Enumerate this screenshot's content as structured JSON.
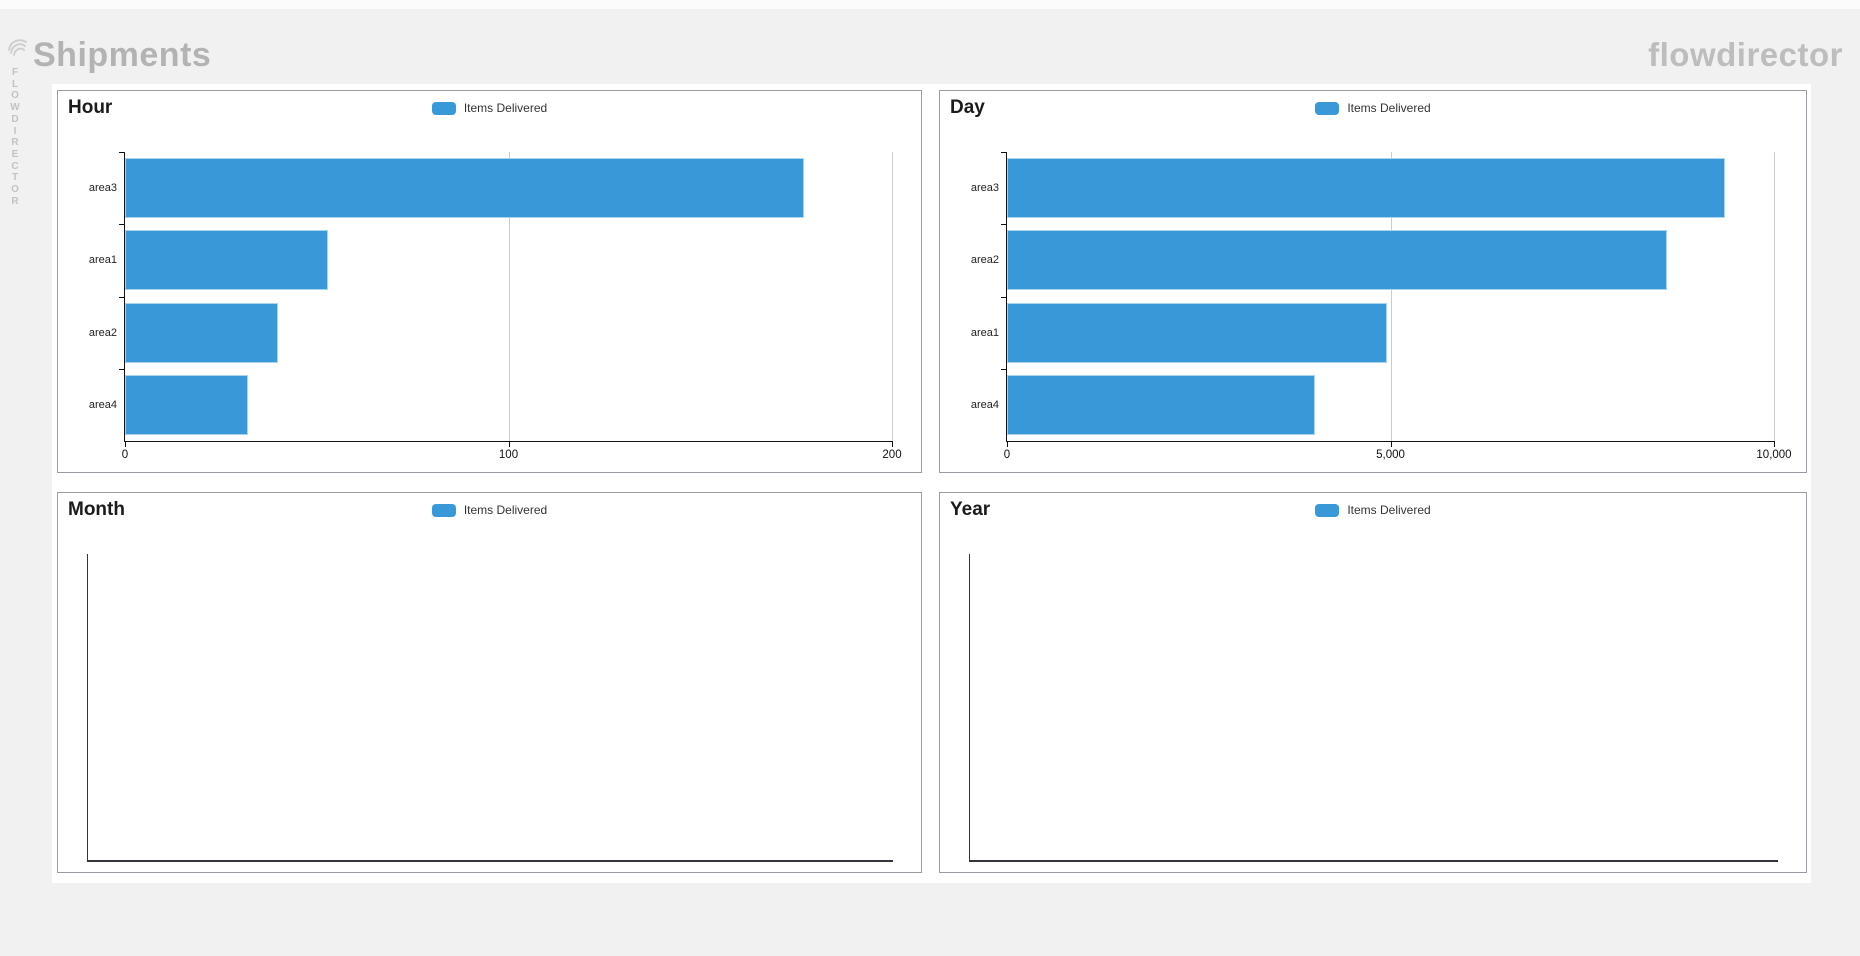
{
  "header": {
    "app_title": "Shipments",
    "brand": "flowdirector",
    "sidebar_vertical_text": "FLOWDIRECTOR"
  },
  "colors": {
    "bar": "#3898d8",
    "bar_edge": "#a9d3ee",
    "grid": "#cccccc",
    "panel_border": "#9b9ba3",
    "muted_header_text": "#b3b3b3"
  },
  "chart_data": [
    {
      "id": "hour",
      "title": "Hour",
      "type": "bar",
      "orientation": "horizontal",
      "legend_label": "Items Delivered",
      "categories": [
        "area3",
        "area1",
        "area2",
        "area4"
      ],
      "values": [
        177,
        53,
        40,
        32
      ],
      "xlim": [
        0,
        200
      ],
      "xtick_labels": [
        "0",
        "100",
        "200"
      ],
      "grid": "vertical gridlines at ticks",
      "legend_position": "top-center"
    },
    {
      "id": "day",
      "title": "Day",
      "type": "bar",
      "orientation": "horizontal",
      "legend_label": "Items Delivered",
      "categories": [
        "area3",
        "area2",
        "area1",
        "area4"
      ],
      "values": [
        9360,
        8600,
        4960,
        4010
      ],
      "xlim": [
        0,
        10000
      ],
      "xtick_labels": [
        "0",
        "5,000",
        "10,000"
      ],
      "grid": "vertical gridlines at ticks",
      "legend_position": "top-center"
    },
    {
      "id": "month",
      "title": "Month",
      "type": "bar",
      "orientation": "horizontal",
      "legend_label": "Items Delivered",
      "categories": [],
      "values": [],
      "xtick_labels": [],
      "note": "empty chart, axes only"
    },
    {
      "id": "year",
      "title": "Year",
      "type": "bar",
      "orientation": "horizontal",
      "legend_label": "Items Delivered",
      "categories": [],
      "values": [],
      "xtick_labels": [],
      "note": "empty chart, axes only"
    }
  ]
}
